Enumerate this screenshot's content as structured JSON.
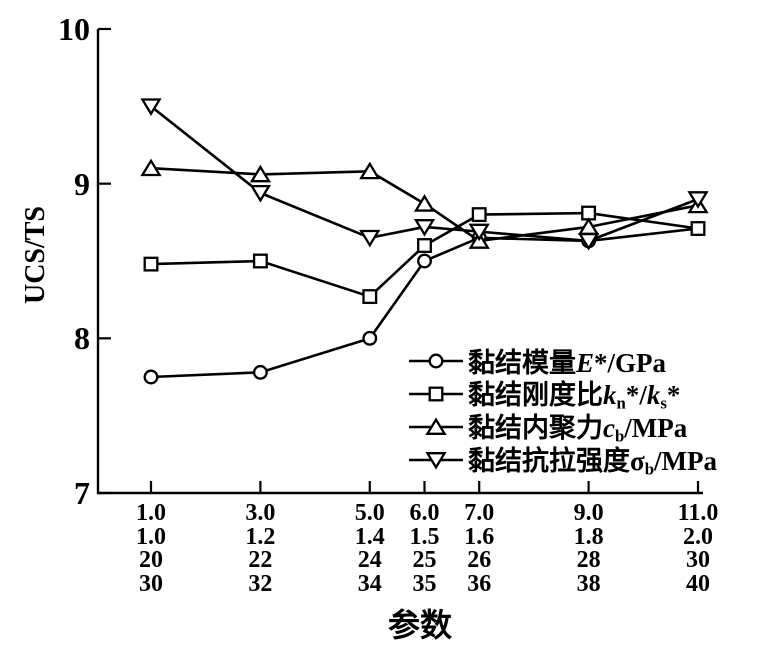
{
  "figure": {
    "background_color": "#ffffff",
    "ink_color": "#000000"
  },
  "chart_data": {
    "type": "line",
    "title": "",
    "xlabel": "参数",
    "ylabel": "UCS/TS",
    "ylim": [
      7,
      10
    ],
    "grid": false,
    "legend_position": "inside-lower-right",
    "y_ticks": [
      {
        "label": "10",
        "value": 10
      },
      {
        "label": "9",
        "value": 9
      },
      {
        "label": "8",
        "value": 8
      },
      {
        "label": "7",
        "value": 7
      }
    ],
    "x_tick_columns": [
      {
        "value": 1.0,
        "labels": [
          "1.0",
          "1.0",
          "20",
          "30"
        ]
      },
      {
        "value": 3.0,
        "labels": [
          "3.0",
          "1.2",
          "22",
          "32"
        ]
      },
      {
        "value": 5.0,
        "labels": [
          "5.0",
          "1.4",
          "24",
          "34"
        ]
      },
      {
        "value": 6.0,
        "labels": [
          "6.0",
          "1.5",
          "25",
          "35"
        ]
      },
      {
        "value": 7.0,
        "labels": [
          "7.0",
          "1.6",
          "26",
          "36"
        ]
      },
      {
        "value": 9.0,
        "labels": [
          "9.0",
          "1.8",
          "28",
          "38"
        ]
      },
      {
        "value": 11.0,
        "labels": [
          "11.0",
          "2.0",
          "30",
          "40"
        ]
      }
    ],
    "x": [
      1.0,
      3.0,
      5.0,
      6.0,
      7.0,
      9.0,
      11.0
    ],
    "series": [
      {
        "name": "黏结模量E*/GPa",
        "marker": "circle",
        "label_segments": [
          {
            "t": "黏结模量"
          },
          {
            "t": "E",
            "italic": true
          },
          {
            "t": "*/GPa"
          }
        ],
        "values": [
          7.75,
          7.78,
          8.0,
          8.5,
          8.65,
          8.63,
          8.71
        ]
      },
      {
        "name": "黏结刚度比kn*/ks*",
        "marker": "square",
        "label_segments": [
          {
            "t": "黏结刚度比"
          },
          {
            "t": "k",
            "italic": true
          },
          {
            "t": "n",
            "sub": true
          },
          {
            "t": "*/"
          },
          {
            "t": "k",
            "italic": true
          },
          {
            "t": "s",
            "sub": true
          },
          {
            "t": "*"
          }
        ],
        "values": [
          8.48,
          8.5,
          8.27,
          8.6,
          8.8,
          8.81,
          8.71
        ]
      },
      {
        "name": "黏结内聚力cb/MPa",
        "marker": "triangle-up",
        "label_segments": [
          {
            "t": "黏结内聚力"
          },
          {
            "t": "c",
            "italic": true
          },
          {
            "t": "b",
            "sub": true
          },
          {
            "t": "/MPa"
          }
        ],
        "values": [
          9.1,
          9.06,
          9.08,
          8.87,
          8.63,
          8.72,
          8.86
        ]
      },
      {
        "name": "黏结抗拉强度σb/MPa",
        "marker": "triangle-down",
        "label_segments": [
          {
            "t": "黏结抗拉强度"
          },
          {
            "t": "σ"
          },
          {
            "t": "b",
            "sub": true
          },
          {
            "t": "/MPa"
          }
        ],
        "values": [
          9.5,
          8.94,
          8.65,
          8.72,
          8.69,
          8.63,
          8.9
        ]
      }
    ]
  }
}
